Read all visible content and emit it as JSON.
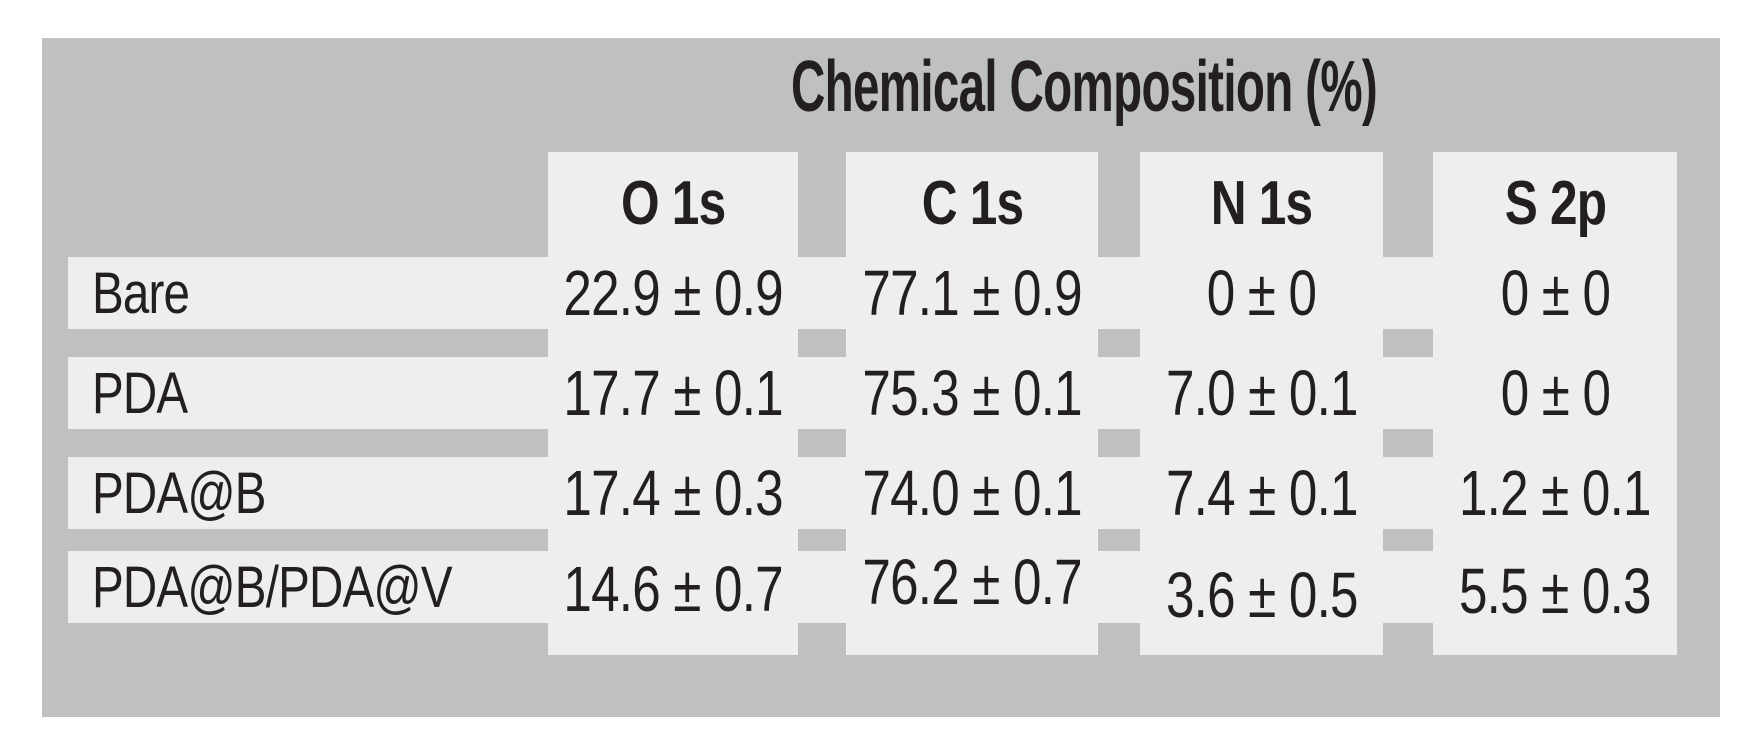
{
  "title": "Chemical Composition (%)",
  "table": {
    "columns": [
      "O 1s",
      "C 1s",
      "N 1s",
      "S 2p"
    ],
    "rows": [
      {
        "label": "Bare",
        "values": [
          "22.9 ± 0.9",
          "77.1 ± 0.9",
          "0 ± 0",
          "0 ± 0"
        ]
      },
      {
        "label": "PDA",
        "values": [
          "17.7 ± 0.1",
          "75.3 ± 0.1",
          "7.0 ± 0.1",
          "0 ± 0"
        ]
      },
      {
        "label": "PDA@B",
        "values": [
          "17.4 ± 0.3",
          "74.0 ± 0.1",
          "7.4 ± 0.1",
          "1.2 ± 0.1"
        ]
      },
      {
        "label": "PDA@B/PDA@V",
        "values": [
          "14.6 ± 0.7",
          "76.2 ± 0.7",
          "3.6 ± 0.5",
          "5.5 ± 0.3"
        ]
      }
    ]
  },
  "colors": {
    "panel": "#bec0c2",
    "stripe": "#eeeeef",
    "text": "#231f20"
  }
}
